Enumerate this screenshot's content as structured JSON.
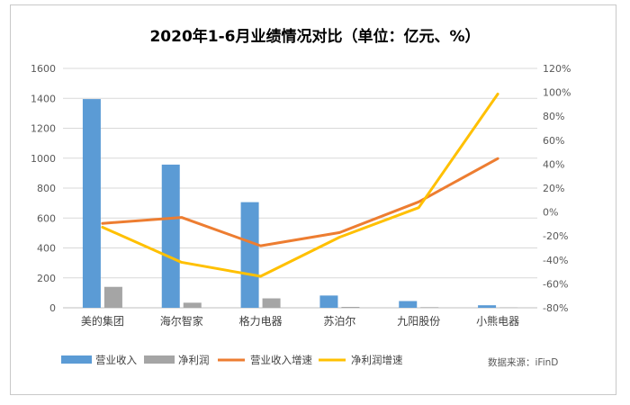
{
  "chart_data": {
    "type": "bar",
    "title": "2020年1-6月业绩情况对比（单位：亿元、%）",
    "categories": [
      "美的集团",
      "海尔智家",
      "格力电器",
      "苏泊尔",
      "九阳股份",
      "小熊电器"
    ],
    "bar_series": [
      {
        "name": "营业收入",
        "color": "#5b9bd5",
        "values": [
          1395,
          957,
          706,
          82,
          45,
          17
        ]
      },
      {
        "name": "净利润",
        "color": "#a5a5a5",
        "values": [
          140,
          34,
          63,
          6,
          4,
          2
        ]
      }
    ],
    "line_series": [
      {
        "name": "营业收入增速",
        "color": "#ed7d31",
        "values": [
          -9.5,
          -4.5,
          -28.2,
          -17.1,
          8.5,
          44.7
        ]
      },
      {
        "name": "净利润增速",
        "color": "#ffc000",
        "values": [
          -12.7,
          -42,
          -53.7,
          -21,
          3.7,
          98.6
        ]
      }
    ],
    "y_left": {
      "lim": [
        0,
        1600
      ],
      "ticks": [
        "0",
        "200",
        "400",
        "600",
        "800",
        "1000",
        "1200",
        "1400",
        "1600"
      ]
    },
    "y_right": {
      "lim": [
        -80,
        120
      ],
      "ticks": [
        "-80%",
        "-60%",
        "-40%",
        "-20%",
        "0%",
        "20%",
        "40%",
        "60%",
        "80%",
        "100%",
        "120%"
      ]
    },
    "gridlines": true,
    "legend_position": "bottom",
    "source_note": "数据来源：iFinD"
  }
}
